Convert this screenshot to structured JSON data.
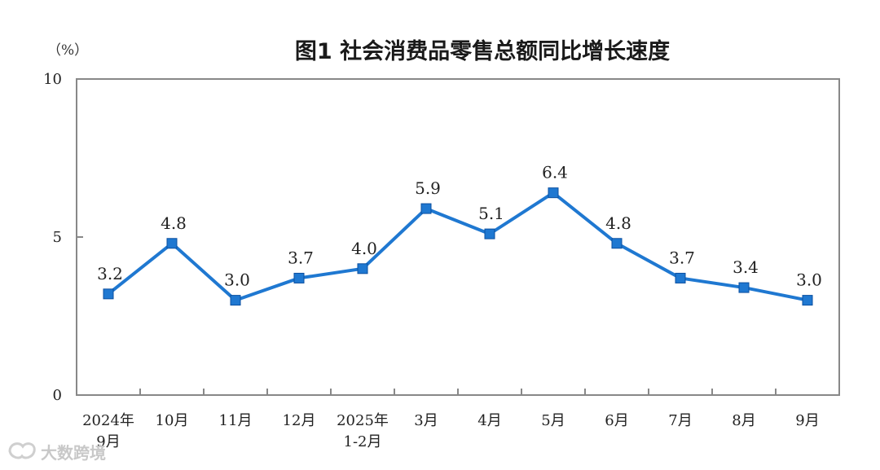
{
  "chart_data": {
    "type": "line",
    "title": "图1  社会消费品零售总额同比增长速度",
    "unit_label": "（%）",
    "categories": [
      [
        "2024年",
        "9月"
      ],
      [
        "10月"
      ],
      [
        "11月"
      ],
      [
        "12月"
      ],
      [
        "2025年",
        "1-2月"
      ],
      [
        "3月"
      ],
      [
        "4月"
      ],
      [
        "5月"
      ],
      [
        "6月"
      ],
      [
        "7月"
      ],
      [
        "8月"
      ],
      [
        "9月"
      ]
    ],
    "values": [
      3.2,
      4.8,
      3.0,
      3.7,
      4.0,
      5.9,
      5.1,
      6.4,
      4.8,
      3.7,
      3.4,
      3.0
    ],
    "data_labels": [
      "3.2",
      "4.8",
      "3.0",
      "3.7",
      "4.0",
      "5.9",
      "5.1",
      "6.4",
      "4.8",
      "3.7",
      "3.4",
      "3.0"
    ],
    "ylim": [
      0,
      10
    ],
    "yticks": [
      "0",
      "5",
      "10"
    ],
    "grid": false,
    "line_color": "#1f78d1",
    "marker": "square"
  },
  "watermark": {
    "text": "大数跨境"
  }
}
